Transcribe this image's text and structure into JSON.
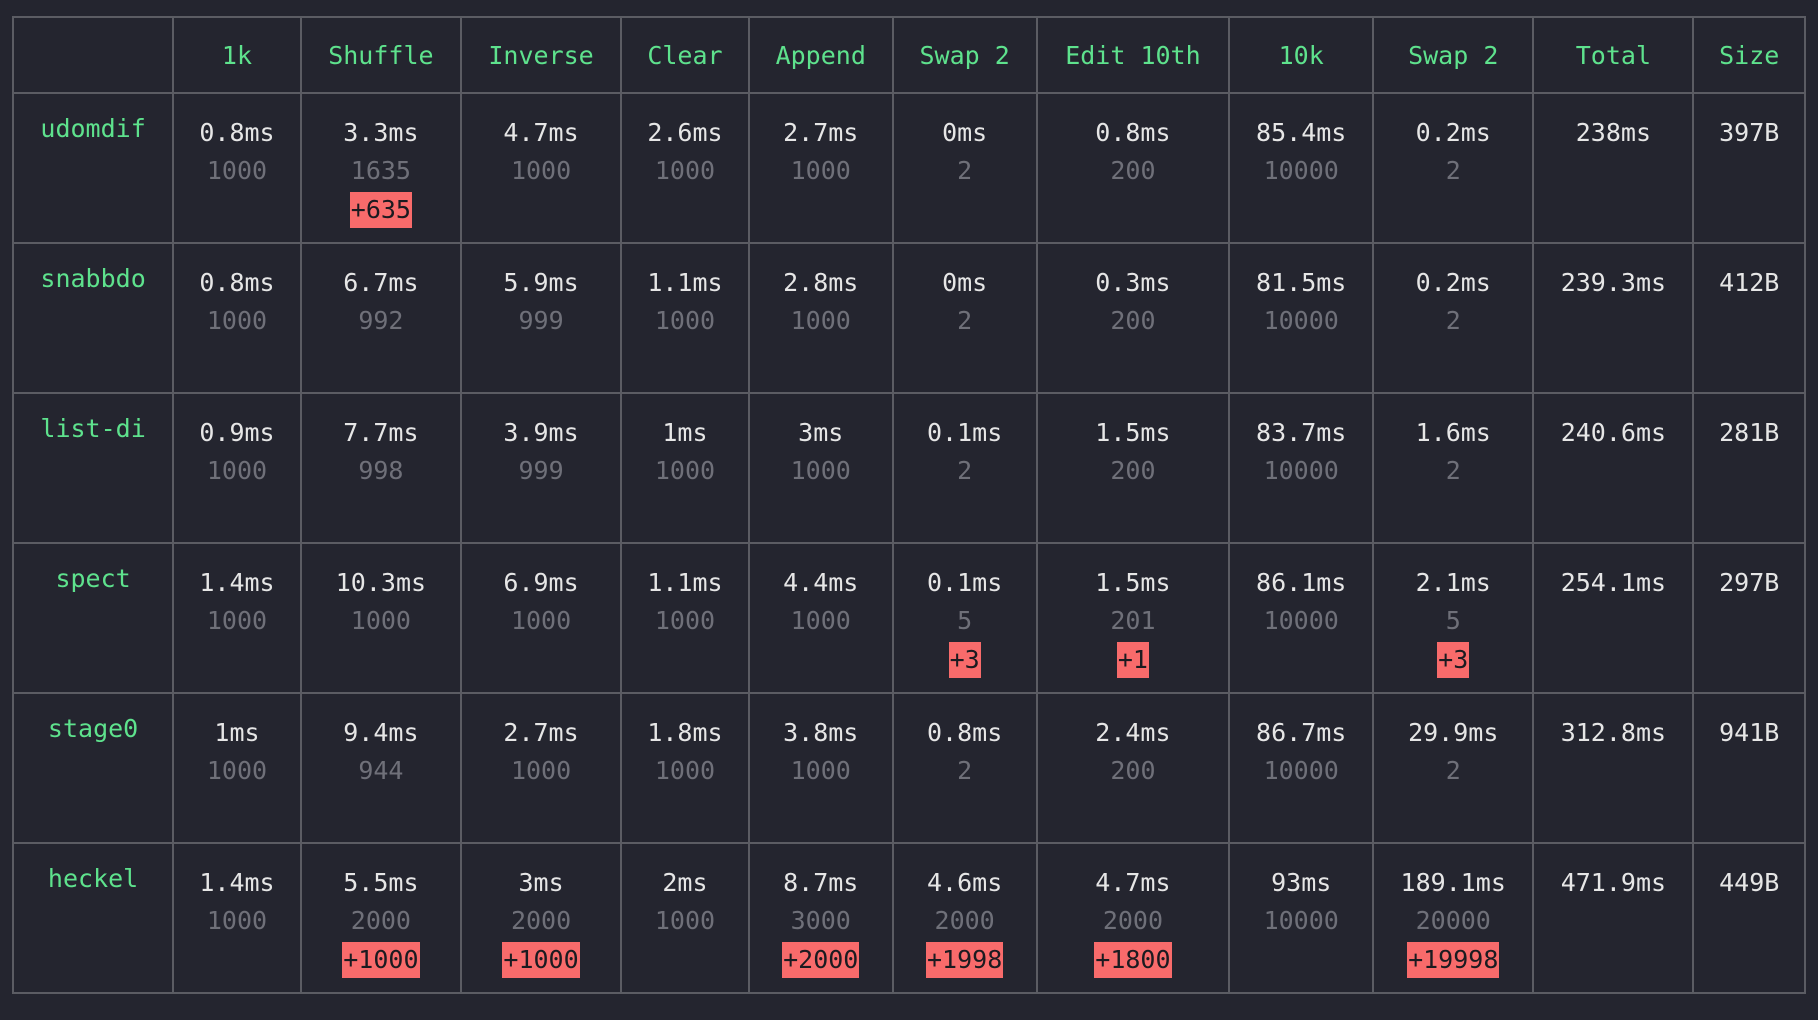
{
  "columns": [
    "",
    "1k",
    "Shuffle",
    "Inverse",
    "Clear",
    "Append",
    "Swap 2",
    "Edit 10th",
    "10k",
    "Swap 2",
    "Total",
    "Size"
  ],
  "rows": [
    {
      "name": "udomdif",
      "cells": [
        {
          "time": "0.8ms",
          "count": "1000"
        },
        {
          "time": "3.3ms",
          "count": "1635",
          "diff": "+635"
        },
        {
          "time": "4.7ms",
          "count": "1000"
        },
        {
          "time": "2.6ms",
          "count": "1000"
        },
        {
          "time": "2.7ms",
          "count": "1000"
        },
        {
          "time": "0ms",
          "count": "2"
        },
        {
          "time": "0.8ms",
          "count": "200"
        },
        {
          "time": "85.4ms",
          "count": "10000"
        },
        {
          "time": "0.2ms",
          "count": "2"
        }
      ],
      "total": "238ms",
      "size": "397B"
    },
    {
      "name": "snabbdo",
      "cells": [
        {
          "time": "0.8ms",
          "count": "1000"
        },
        {
          "time": "6.7ms",
          "count": "992"
        },
        {
          "time": "5.9ms",
          "count": "999"
        },
        {
          "time": "1.1ms",
          "count": "1000"
        },
        {
          "time": "2.8ms",
          "count": "1000"
        },
        {
          "time": "0ms",
          "count": "2"
        },
        {
          "time": "0.3ms",
          "count": "200"
        },
        {
          "time": "81.5ms",
          "count": "10000"
        },
        {
          "time": "0.2ms",
          "count": "2"
        }
      ],
      "total": "239.3ms",
      "size": "412B"
    },
    {
      "name": "list-di",
      "cells": [
        {
          "time": "0.9ms",
          "count": "1000"
        },
        {
          "time": "7.7ms",
          "count": "998"
        },
        {
          "time": "3.9ms",
          "count": "999"
        },
        {
          "time": "1ms",
          "count": "1000"
        },
        {
          "time": "3ms",
          "count": "1000"
        },
        {
          "time": "0.1ms",
          "count": "2"
        },
        {
          "time": "1.5ms",
          "count": "200"
        },
        {
          "time": "83.7ms",
          "count": "10000"
        },
        {
          "time": "1.6ms",
          "count": "2"
        }
      ],
      "total": "240.6ms",
      "size": "281B"
    },
    {
      "name": "spect",
      "cells": [
        {
          "time": "1.4ms",
          "count": "1000"
        },
        {
          "time": "10.3ms",
          "count": "1000"
        },
        {
          "time": "6.9ms",
          "count": "1000"
        },
        {
          "time": "1.1ms",
          "count": "1000"
        },
        {
          "time": "4.4ms",
          "count": "1000"
        },
        {
          "time": "0.1ms",
          "count": "5",
          "diff": "+3"
        },
        {
          "time": "1.5ms",
          "count": "201",
          "diff": "+1"
        },
        {
          "time": "86.1ms",
          "count": "10000"
        },
        {
          "time": "2.1ms",
          "count": "5",
          "diff": "+3"
        }
      ],
      "total": "254.1ms",
      "size": "297B"
    },
    {
      "name": "stage0",
      "cells": [
        {
          "time": "1ms",
          "count": "1000"
        },
        {
          "time": "9.4ms",
          "count": "944"
        },
        {
          "time": "2.7ms",
          "count": "1000"
        },
        {
          "time": "1.8ms",
          "count": "1000"
        },
        {
          "time": "3.8ms",
          "count": "1000"
        },
        {
          "time": "0.8ms",
          "count": "2"
        },
        {
          "time": "2.4ms",
          "count": "200"
        },
        {
          "time": "86.7ms",
          "count": "10000"
        },
        {
          "time": "29.9ms",
          "count": "2"
        }
      ],
      "total": "312.8ms",
      "size": "941B"
    },
    {
      "name": "heckel",
      "cells": [
        {
          "time": "1.4ms",
          "count": "1000"
        },
        {
          "time": "5.5ms",
          "count": "2000",
          "diff": "+1000"
        },
        {
          "time": "3ms",
          "count": "2000",
          "diff": "+1000"
        },
        {
          "time": "2ms",
          "count": "1000"
        },
        {
          "time": "8.7ms",
          "count": "3000",
          "diff": "+2000"
        },
        {
          "time": "4.6ms",
          "count": "2000",
          "diff": "+1998"
        },
        {
          "time": "4.7ms",
          "count": "2000",
          "diff": "+1800"
        },
        {
          "time": "93ms",
          "count": "10000"
        },
        {
          "time": "189.1ms",
          "count": "20000",
          "diff": "+19998"
        }
      ],
      "total": "471.9ms",
      "size": "449B"
    }
  ],
  "colors": {
    "background": "#24252f",
    "header_text": "#5ee28d",
    "value_text": "#e6e6e6",
    "count_text": "#6f7079",
    "diff_badge": "#f86b6b",
    "grid_line": "#5b5c63"
  }
}
